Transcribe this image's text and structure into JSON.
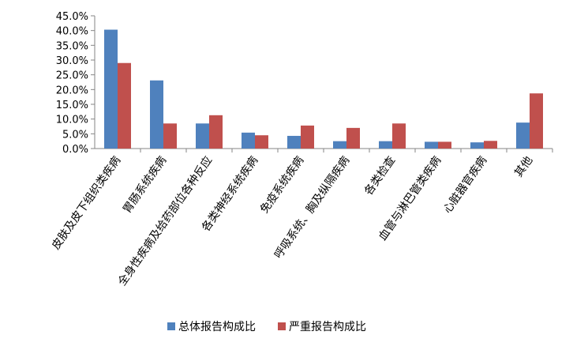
{
  "chart_data": {
    "type": "bar",
    "categories": [
      "皮肤及皮下组织类疾病",
      "胃肠系统疾病",
      "全身性疾病及给药部位各种反应",
      "各类神经系统疾病",
      "免疫系统疾病",
      "呼吸系统、胸及纵隔疾病",
      "各类检查",
      "血管与淋巴管类疾病",
      "心脏器官疾病",
      "其他"
    ],
    "series": [
      {
        "name": "总体报告构成比",
        "color": "#4F81BD",
        "values": [
          40.3,
          23.1,
          8.5,
          5.4,
          4.3,
          2.5,
          2.5,
          2.3,
          2.1,
          8.8
        ]
      },
      {
        "name": "严重报告构成比",
        "color": "#C0504D",
        "values": [
          29.0,
          8.5,
          11.3,
          4.5,
          7.8,
          7.0,
          8.5,
          2.3,
          2.6,
          18.7
        ]
      }
    ],
    "yticks": [
      "0.0%",
      "5.0%",
      "10.0%",
      "15.0%",
      "20.0%",
      "25.0%",
      "30.0%",
      "35.0%",
      "40.0%",
      "45.0%"
    ],
    "ylim": [
      0,
      45
    ],
    "grid": false,
    "legend_position": "bottom"
  }
}
